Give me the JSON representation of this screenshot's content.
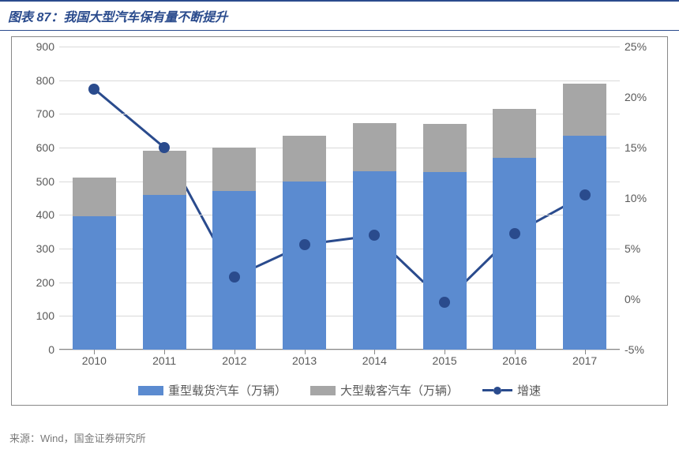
{
  "title": {
    "prefix": "图表 87：",
    "text": "我国大型汽车保有量不断提升"
  },
  "source": "来源：Wind，国金证券研究所",
  "chart": {
    "type": "stacked-bar-with-line",
    "background_color": "#ffffff",
    "grid_color": "#d9d9d9",
    "axis_color": "#888888",
    "label_color": "#595959",
    "label_fontsize": 14,
    "categories": [
      "2010",
      "2011",
      "2012",
      "2013",
      "2014",
      "2015",
      "2016",
      "2017"
    ],
    "y_left": {
      "min": 0,
      "max": 900,
      "step": 100,
      "ticks": [
        0,
        100,
        200,
        300,
        400,
        500,
        600,
        700,
        800,
        900
      ]
    },
    "y_right": {
      "min": -5,
      "max": 25,
      "step": 5,
      "ticks": [
        -5,
        0,
        5,
        10,
        15,
        20,
        25
      ],
      "suffix": "%"
    },
    "bar_width_ratio": 0.62,
    "series_bars": [
      {
        "key": "heavy_truck",
        "label": "重型载货汽车（万辆）",
        "color": "#5b8bd0",
        "values": [
          395,
          460,
          470,
          500,
          530,
          528,
          570,
          635
        ]
      },
      {
        "key": "large_bus",
        "label": "大型载客汽车（万辆）",
        "color": "#a6a6a6",
        "values": [
          115,
          130,
          130,
          135,
          142,
          142,
          145,
          155
        ]
      }
    ],
    "series_line": {
      "key": "growth",
      "label": "增速",
      "color": "#2a4b8d",
      "marker_size": 14,
      "line_width": 3,
      "values_pct": [
        20.8,
        15.0,
        2.2,
        5.4,
        6.3,
        -0.3,
        6.5,
        10.3
      ]
    },
    "legend": [
      {
        "type": "swatch",
        "label": "重型载货汽车（万辆）",
        "color": "#5b8bd0"
      },
      {
        "type": "swatch",
        "label": "大型载客汽车（万辆）",
        "color": "#a6a6a6"
      },
      {
        "type": "line-marker",
        "label": "增速",
        "color": "#2a4b8d"
      }
    ]
  }
}
